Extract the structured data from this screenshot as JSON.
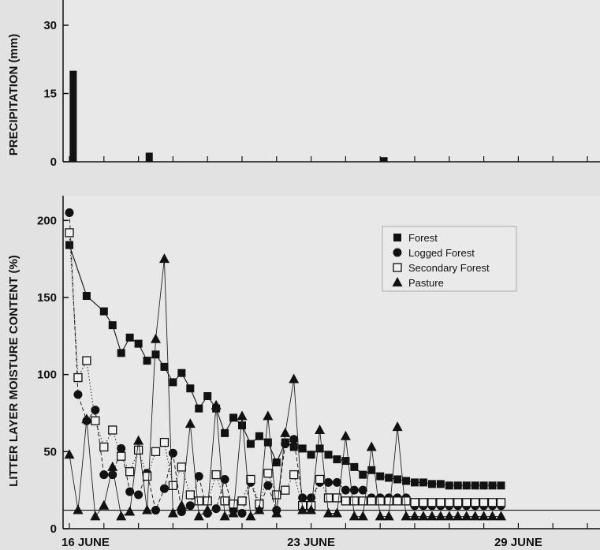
{
  "chart_data": [
    {
      "type": "bar",
      "ylabel": "PRECIPITATION  (mm)",
      "ylim": [
        0,
        30
      ],
      "yticks": [
        0,
        15,
        30
      ],
      "xlim": [
        0,
        15
      ],
      "values": [
        {
          "x": 0.1,
          "y": 20
        },
        {
          "x": 2.3,
          "y": 2
        },
        {
          "x": 9.1,
          "y": 1
        }
      ]
    },
    {
      "type": "scatter",
      "ylabel": "LITTER LAYER MOISTURE CONTENT  (%)",
      "ylim": [
        0,
        215
      ],
      "yticks": [
        0,
        50,
        100,
        150,
        200
      ],
      "xlim": [
        0,
        15
      ],
      "xticks": [
        {
          "x": 0,
          "label": "16 JUNE"
        },
        {
          "x": 7,
          "label": "23 JUNE"
        },
        {
          "x": 13,
          "label": "29 JUNE"
        }
      ],
      "reference_line": 12,
      "legend_position": "top-right",
      "series": [
        {
          "name": "Forest",
          "marker": "square-filled",
          "x": [
            0,
            0.5,
            1,
            1.25,
            1.5,
            1.75,
            2,
            2.25,
            2.5,
            2.75,
            3,
            3.25,
            3.5,
            3.75,
            4,
            4.25,
            4.5,
            4.75,
            5,
            5.25,
            5.5,
            5.75,
            6,
            6.25,
            6.5,
            6.75,
            7,
            7.25,
            7.5,
            7.75,
            8,
            8.25,
            8.5,
            8.75,
            9,
            9.25,
            9.5,
            9.75,
            10,
            10.25,
            10.5,
            10.75,
            11,
            11.25,
            11.5,
            11.75,
            12,
            12.25,
            12.5
          ],
          "y": [
            184,
            151,
            141,
            132,
            114,
            124,
            120,
            109,
            113,
            105,
            95,
            101,
            91,
            78,
            86,
            78,
            62,
            72,
            67,
            55,
            60,
            56,
            43,
            56,
            53,
            52,
            48,
            52,
            48,
            45,
            44,
            40,
            35,
            38,
            34,
            33,
            32,
            31,
            30,
            30,
            29,
            29,
            28,
            28,
            28,
            28,
            28,
            28,
            28
          ]
        },
        {
          "name": "Logged Forest",
          "marker": "circle-filled",
          "x": [
            0,
            0.25,
            0.5,
            0.75,
            1,
            1.25,
            1.5,
            1.75,
            2,
            2.25,
            2.5,
            2.75,
            3,
            3.25,
            3.5,
            3.75,
            4,
            4.25,
            4.5,
            4.75,
            5,
            5.25,
            5.5,
            5.75,
            6,
            6.25,
            6.5,
            6.75,
            7,
            7.25,
            7.5,
            7.75,
            8,
            8.25,
            8.5,
            8.75,
            9,
            9.25,
            9.5,
            9.75,
            10,
            10.25,
            10.5,
            10.75,
            11,
            11.25,
            11.5,
            11.75,
            12,
            12.25,
            12.5
          ],
          "y": [
            205,
            87,
            70,
            77,
            35,
            35,
            52,
            24,
            22,
            36,
            12,
            26,
            49,
            11,
            15,
            34,
            10,
            13,
            32,
            12,
            10,
            30,
            14,
            28,
            12,
            55,
            58,
            20,
            20,
            30,
            30,
            30,
            25,
            25,
            25,
            20,
            20,
            20,
            20,
            20,
            15,
            15,
            15,
            15,
            15,
            15,
            15,
            15,
            15,
            15,
            15
          ]
        },
        {
          "name": "Secondary Forest",
          "marker": "square-open",
          "x": [
            0,
            0.25,
            0.5,
            0.75,
            1,
            1.25,
            1.5,
            1.75,
            2,
            2.25,
            2.5,
            2.75,
            3,
            3.25,
            3.5,
            3.75,
            4,
            4.25,
            4.5,
            4.75,
            5,
            5.25,
            5.5,
            5.75,
            6,
            6.25,
            6.5,
            6.75,
            7,
            7.25,
            7.5,
            7.75,
            8,
            8.25,
            8.5,
            8.75,
            9,
            9.25,
            9.5,
            9.75,
            10,
            10.25,
            10.5,
            10.75,
            11,
            11.25,
            11.5,
            11.75,
            12,
            12.25,
            12.5
          ],
          "y": [
            192,
            98,
            109,
            70,
            53,
            64,
            47,
            37,
            51,
            34,
            50,
            56,
            28,
            40,
            22,
            18,
            18,
            35,
            18,
            16,
            18,
            32,
            16,
            36,
            22,
            25,
            35,
            15,
            15,
            32,
            20,
            20,
            18,
            18,
            18,
            18,
            18,
            18,
            18,
            18,
            17,
            17,
            17,
            17,
            17,
            17,
            17,
            17,
            17,
            17,
            17
          ]
        },
        {
          "name": "Pasture",
          "marker": "triangle-filled",
          "x": [
            0,
            0.25,
            0.5,
            0.75,
            1,
            1.25,
            1.5,
            1.75,
            2,
            2.25,
            2.5,
            2.75,
            3,
            3.25,
            3.5,
            3.75,
            4,
            4.25,
            4.5,
            4.75,
            5,
            5.25,
            5.5,
            5.75,
            6,
            6.25,
            6.5,
            6.75,
            7,
            7.25,
            7.5,
            7.75,
            8,
            8.25,
            8.5,
            8.75,
            9,
            9.25,
            9.5,
            9.75,
            10,
            10.25,
            10.5,
            10.75,
            11,
            11.25,
            11.5,
            11.75,
            12,
            12.25,
            12.5
          ],
          "y": [
            48,
            12,
            71,
            8,
            15,
            40,
            8,
            11,
            57,
            12,
            123,
            175,
            10,
            15,
            68,
            8,
            12,
            80,
            8,
            10,
            73,
            8,
            12,
            73,
            10,
            62,
            97,
            12,
            12,
            64,
            10,
            10,
            60,
            8,
            8,
            53,
            8,
            8,
            66,
            8,
            8,
            8,
            8,
            8,
            8,
            8,
            8,
            8,
            8,
            8,
            8
          ]
        }
      ]
    }
  ]
}
